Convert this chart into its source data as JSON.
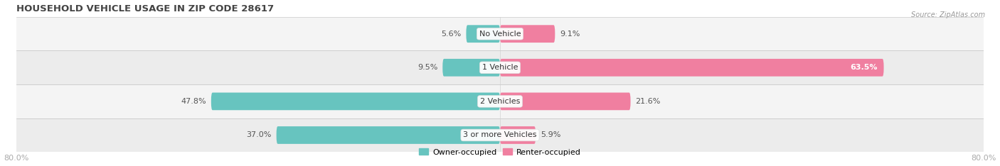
{
  "title": "HOUSEHOLD VEHICLE USAGE IN ZIP CODE 28617",
  "source": "Source: ZipAtlas.com",
  "categories": [
    "No Vehicle",
    "1 Vehicle",
    "2 Vehicles",
    "3 or more Vehicles"
  ],
  "owner_values": [
    5.6,
    9.5,
    47.8,
    37.0
  ],
  "renter_values": [
    9.1,
    63.5,
    21.6,
    5.9
  ],
  "owner_color": "#67c4bf",
  "renter_color": "#f07fa0",
  "row_bg_light": "#f4f4f4",
  "row_bg_dark": "#ececec",
  "x_min": -80.0,
  "x_max": 80.0,
  "title_fontsize": 9.5,
  "label_fontsize": 8,
  "bar_height": 0.52,
  "category_fontsize": 8,
  "tick_color": "#aaaaaa"
}
